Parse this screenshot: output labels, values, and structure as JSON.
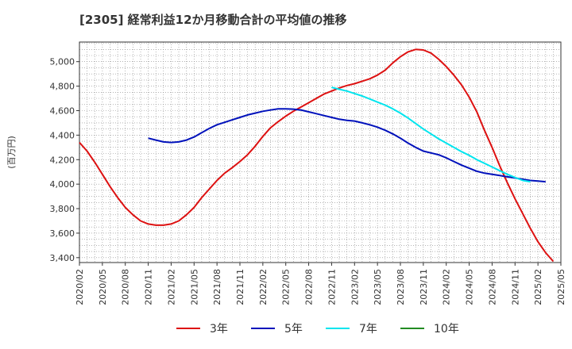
{
  "title": "[2305]  経常利益12か月移動合計の平均値の推移",
  "chart_data": {
    "type": "line",
    "ylabel": "(百万円)",
    "ylim": [
      3360,
      5160
    ],
    "yticks": [
      3400,
      3600,
      3800,
      4000,
      4200,
      4400,
      4600,
      4800,
      5000
    ],
    "ytick_labels": [
      "3,400",
      "3,600",
      "3,800",
      "4,000",
      "4,200",
      "4,400",
      "4,600",
      "4,800",
      "5,000"
    ],
    "xlim": [
      "2020/02",
      "2025/05"
    ],
    "xtick_labels": [
      "2020/02",
      "2020/05",
      "2020/08",
      "2020/11",
      "2021/02",
      "2021/05",
      "2021/08",
      "2021/11",
      "2022/02",
      "2022/05",
      "2022/08",
      "2022/11",
      "2023/02",
      "2023/05",
      "2023/08",
      "2023/11",
      "2024/02",
      "2024/05",
      "2024/08",
      "2024/11",
      "2025/02",
      "2025/05"
    ],
    "grid": true,
    "legend_position": "bottom",
    "series": [
      {
        "name": "3年",
        "color": "#dd1111",
        "start": "2020/02",
        "values": [
          4340,
          4270,
          4180,
          4080,
          3980,
          3890,
          3810,
          3750,
          3700,
          3675,
          3665,
          3665,
          3675,
          3700,
          3750,
          3810,
          3890,
          3960,
          4030,
          4090,
          4135,
          4185,
          4240,
          4310,
          4390,
          4460,
          4510,
          4555,
          4595,
          4630,
          4665,
          4700,
          4735,
          4760,
          4785,
          4805,
          4820,
          4840,
          4860,
          4890,
          4930,
          4990,
          5040,
          5080,
          5100,
          5095,
          5070,
          5020,
          4960,
          4890,
          4810,
          4710,
          4590,
          4440,
          4300,
          4150,
          4010,
          3880,
          3760,
          3640,
          3530,
          3440,
          3370
        ]
      },
      {
        "name": "5年",
        "color": "#0011bb",
        "start": "2020/11",
        "values": [
          4375,
          4360,
          4345,
          4340,
          4345,
          4360,
          4385,
          4420,
          4455,
          4485,
          4505,
          4525,
          4545,
          4565,
          4580,
          4595,
          4605,
          4615,
          4615,
          4612,
          4605,
          4590,
          4575,
          4560,
          4545,
          4530,
          4520,
          4515,
          4500,
          4485,
          4465,
          4440,
          4410,
          4375,
          4335,
          4300,
          4270,
          4255,
          4240,
          4215,
          4185,
          4155,
          4130,
          4105,
          4090,
          4080,
          4070,
          4060,
          4050,
          4040,
          4030,
          4025,
          4020
        ]
      },
      {
        "name": "7年",
        "color": "#00e5ee",
        "start": "2022/11",
        "values": [
          4790,
          4775,
          4760,
          4740,
          4720,
          4695,
          4670,
          4645,
          4615,
          4580,
          4540,
          4495,
          4450,
          4410,
          4370,
          4335,
          4300,
          4265,
          4235,
          4200,
          4170,
          4140,
          4110,
          4080,
          4055,
          4030,
          4020
        ]
      },
      {
        "name": "10年",
        "color": "#228b22",
        "start": "2025/02",
        "values": []
      }
    ]
  }
}
